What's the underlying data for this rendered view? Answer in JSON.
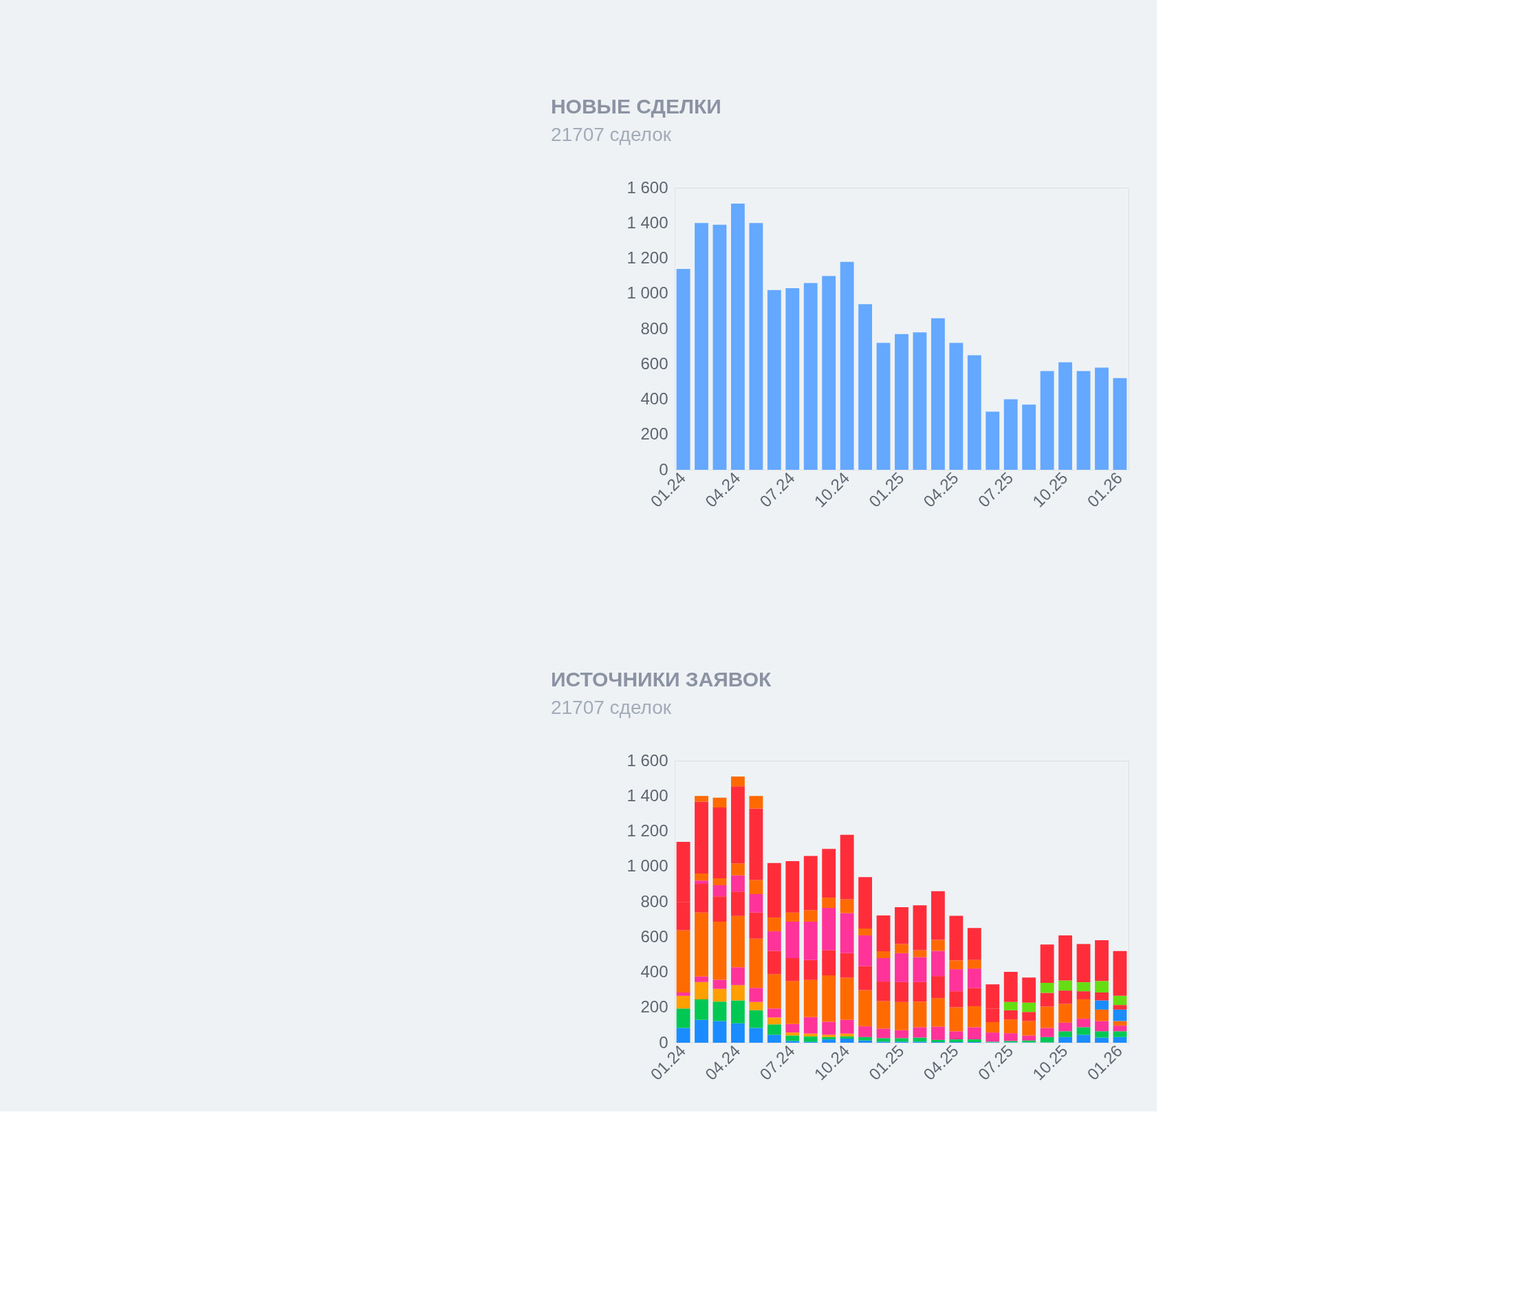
{
  "chart_data": [
    {
      "type": "bar",
      "title": "НОВЫЕ СДЕЛКИ",
      "subtitle": "21707 сделок",
      "categories": [
        "01.24",
        null,
        null,
        "04.24",
        null,
        null,
        "07.24",
        null,
        null,
        "10.24",
        null,
        null,
        "01.25",
        null,
        null,
        "04.25",
        null,
        null,
        "07.25",
        null,
        null,
        "10.25",
        null,
        null,
        "01.26"
      ],
      "values": [
        1140,
        1400,
        1390,
        1510,
        1400,
        1020,
        1030,
        1060,
        1100,
        1180,
        940,
        720,
        770,
        780,
        860,
        720,
        650,
        330,
        400,
        370,
        560,
        610,
        560,
        580,
        520
      ],
      "color": "#64a8ff",
      "ylim": [
        0,
        1600
      ],
      "yticks": [
        0,
        200,
        400,
        600,
        800,
        {
          "value": 1000,
          "label": "1 000"
        },
        {
          "value": 1200,
          "label": "1 200"
        },
        {
          "value": 1400,
          "label": "1 400"
        },
        {
          "value": 1600,
          "label": "1 600"
        }
      ]
    },
    {
      "type": "bar",
      "title": "ИСТОЧНИКИ ЗАЯВОК",
      "subtitle": "21707 сделок",
      "stacked": true,
      "categories": [
        "01.24",
        null,
        null,
        "04.24",
        null,
        null,
        "07.24",
        null,
        null,
        "10.24",
        null,
        null,
        "01.25",
        null,
        null,
        "04.25",
        null,
        null,
        "07.25",
        null,
        null,
        "10.25",
        null,
        null,
        "01.26"
      ],
      "series": [
        {
          "color": "#1a8cff",
          "values": [
            84,
            130,
            123,
            110,
            84,
            45,
            10,
            5,
            19,
            23,
            13,
            6,
            6,
            6,
            4,
            4,
            4,
            2,
            2,
            2,
            2,
            32,
            45,
            29,
            32
          ]
        },
        {
          "color": "#00c853",
          "values": [
            110,
            116,
            110,
            130,
            100,
            59,
            31,
            31,
            13,
            13,
            19,
            20,
            20,
            23,
            12,
            15,
            15,
            4,
            8,
            11,
            30,
            33,
            43,
            36,
            33
          ]
        },
        {
          "color": "#ff9f00",
          "values": [
            72,
            98,
            72,
            87,
            47,
            39,
            17,
            16,
            13,
            16,
            0,
            0,
            0,
            0,
            0,
            0,
            0,
            0,
            0,
            0,
            0,
            0,
            0,
            0,
            0
          ]
        },
        {
          "color": "#ff3399",
          "values": [
            19,
            32,
            52,
            101,
            80,
            51,
            48,
            93,
            74,
            78,
            61,
            54,
            45,
            59,
            75,
            46,
            69,
            52,
            44,
            28,
            52,
            49,
            48,
            58,
            32
          ]
        },
        {
          "color": "#ff6a00",
          "values": [
            353,
            363,
            330,
            291,
            279,
            195,
            244,
            211,
            263,
            239,
            205,
            156,
            160,
            145,
            162,
            136,
            119,
            59,
            78,
            82,
            121,
            106,
            110,
            65,
            26
          ]
        },
        {
          "color": "#1a8cff",
          "values": [
            0,
            0,
            0,
            0,
            0,
            0,
            0,
            0,
            0,
            0,
            0,
            0,
            0,
            0,
            0,
            0,
            0,
            0,
            0,
            0,
            0,
            0,
            0,
            52,
            65
          ]
        },
        {
          "color": "#ff2d3a",
          "values": [
            159,
            162,
            143,
            139,
            149,
            132,
            130,
            113,
            143,
            139,
            136,
            111,
            113,
            111,
            125,
            91,
            104,
            77,
            52,
            52,
            78,
            76,
            46,
            45,
            26
          ]
        },
        {
          "color": "#ff3399",
          "values": [
            0,
            19,
            64,
            91,
            104,
            111,
            207,
            218,
            240,
            228,
            175,
            133,
            164,
            142,
            143,
            125,
            110,
            0,
            0,
            0,
            0,
            0,
            0,
            0,
            0
          ]
        },
        {
          "color": "#66dd11",
          "values": [
            0,
            0,
            0,
            0,
            0,
            0,
            0,
            0,
            0,
            0,
            0,
            0,
            0,
            0,
            0,
            0,
            0,
            0,
            47,
            52,
            57,
            57,
            51,
            65,
            52
          ]
        },
        {
          "color": "#ff6a00",
          "values": [
            0,
            40,
            39,
            69,
            80,
            78,
            52,
            65,
            58,
            78,
            39,
            39,
            52,
            39,
            62,
            50,
            48,
            0,
            0,
            0,
            0,
            0,
            0,
            0,
            0
          ]
        },
        {
          "color": "#ff2d3a",
          "values": [
            343,
            408,
            402,
            437,
            406,
            310,
            291,
            308,
            277,
            366,
            292,
            203,
            209,
            255,
            277,
            253,
            182,
            137,
            171,
            143,
            217,
            256,
            217,
            231,
            254
          ]
        },
        {
          "color": "#ff6a00",
          "values": [
            0,
            32,
            55,
            55,
            71,
            0,
            0,
            0,
            0,
            0,
            0,
            0,
            0,
            0,
            0,
            0,
            0,
            0,
            0,
            0,
            0,
            0,
            0,
            0,
            0
          ]
        }
      ],
      "ylim": [
        0,
        1600
      ],
      "yticks": [
        0,
        200,
        400,
        600,
        800,
        {
          "value": 1000,
          "label": "1 000"
        },
        {
          "value": 1200,
          "label": "1 200"
        },
        {
          "value": 1400,
          "label": "1 400"
        },
        {
          "value": 1600,
          "label": "1 600"
        }
      ]
    }
  ]
}
